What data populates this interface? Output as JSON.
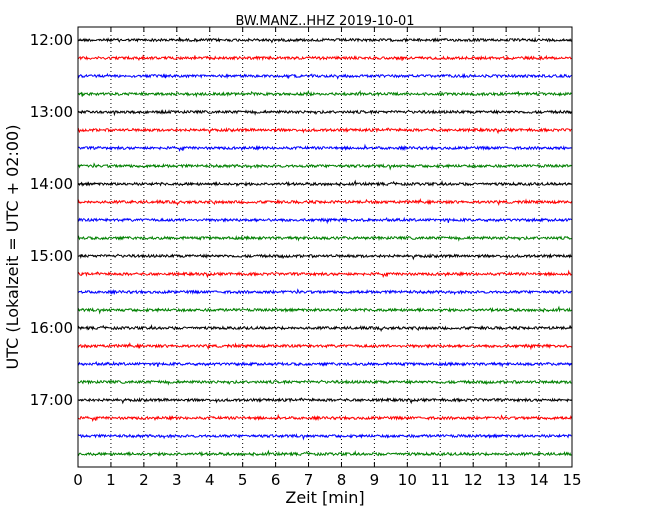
{
  "chart_data": {
    "type": "line",
    "title": "BW.MANZ..HHZ 2019-10-01",
    "xlabel": "Zeit  [min]",
    "ylabel": "UTC (Lokalzeit = UTC + 02:00)",
    "xlim": [
      0,
      15
    ],
    "x_ticks": [
      "0",
      "1",
      "2",
      "3",
      "4",
      "5",
      "6",
      "7",
      "8",
      "9",
      "10",
      "11",
      "12",
      "13",
      "14",
      "15"
    ],
    "y_tick_labels": [
      "12:00",
      "13:00",
      "14:00",
      "15:00",
      "16:00",
      "17:00"
    ],
    "grid": "vertical-dotted",
    "trace_interval_min": 15,
    "trace_start": "12:00",
    "trace_count": 24,
    "trace_colors": [
      "#000000",
      "#ff0000",
      "#0000ff",
      "#008000"
    ]
  }
}
